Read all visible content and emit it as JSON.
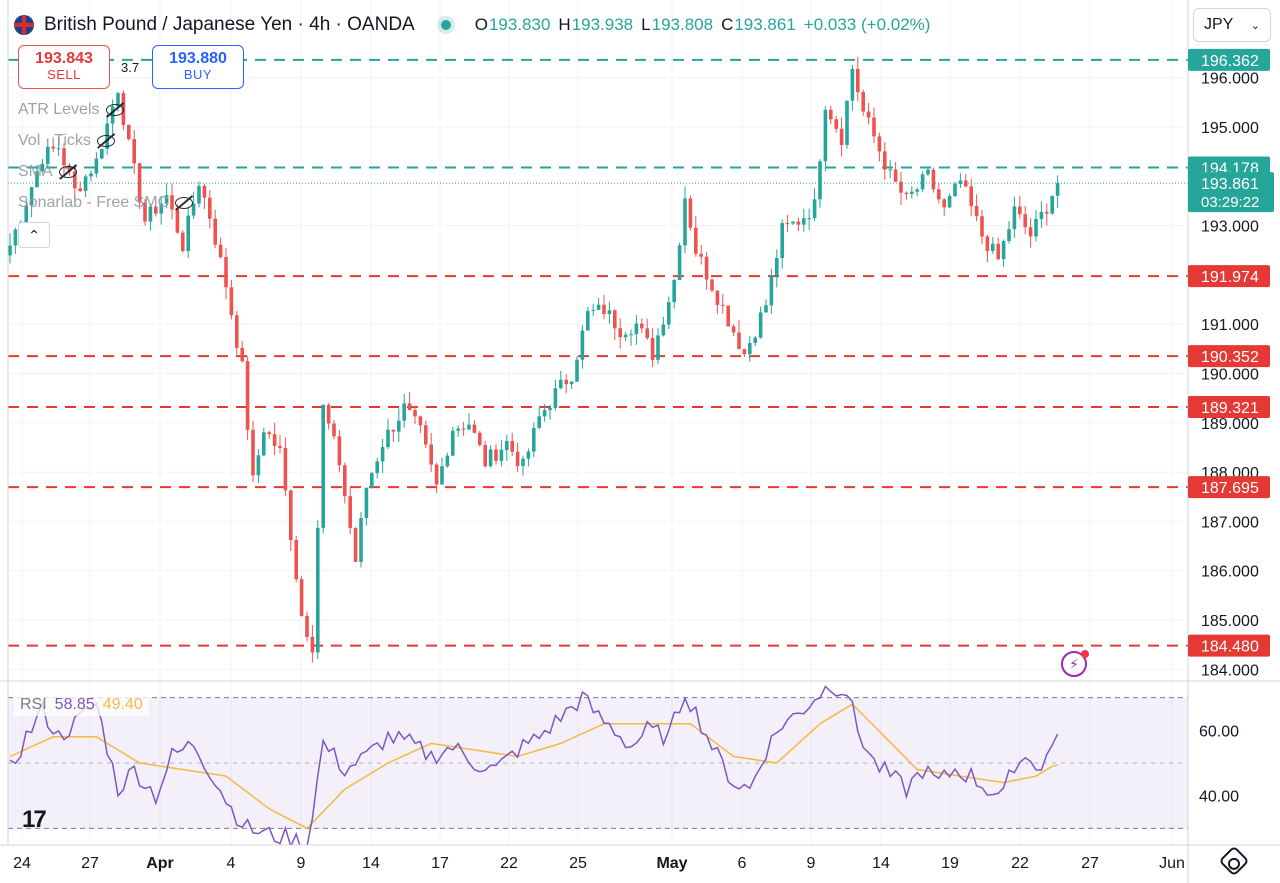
{
  "header": {
    "symbol": "British Pound / Japanese Yen · 4h · OANDA",
    "ohlc": [
      {
        "key": "O",
        "value": "193.830"
      },
      {
        "key": "H",
        "value": "193.938"
      },
      {
        "key": "L",
        "value": "193.808"
      },
      {
        "key": "C",
        "value": "193.861"
      }
    ],
    "change": "+0.033 (+0.02%)"
  },
  "currency_selector": {
    "value": "JPY"
  },
  "trade": {
    "sell_price": "193.843",
    "sell_label": "SELL",
    "buy_price": "193.880",
    "buy_label": "BUY",
    "spread": "3.7"
  },
  "indicators": [
    {
      "label": "ATR Levels"
    },
    {
      "label": "Vol · Ticks"
    },
    {
      "label": "SMA"
    },
    {
      "label": "Sonarlab - Free SMC"
    }
  ],
  "colors": {
    "up": "#26a69a",
    "down": "#ef5350",
    "resistance": "#26a69a",
    "support": "#e53935",
    "rsi_line": "#7e57c2",
    "rsi_ma": "#f5b942",
    "rsi_band": "#7e57c2"
  },
  "icons": {
    "flag": "uk-flag-icon",
    "visibility": "eye-off-icon",
    "collapse": "chevron-up-icon",
    "settings": "gear-icon",
    "alert": "lightning-icon",
    "logo": "tradingview-logo"
  },
  "chart_data": {
    "type": "candlestick",
    "title": "British Pound / Japanese Yen · 4h · OANDA",
    "y_ticks": [
      "184.000",
      "185.000",
      "186.000",
      "187.000",
      "188.000",
      "189.000",
      "190.000",
      "191.000",
      "193.000",
      "195.000",
      "196.000"
    ],
    "ylim": [
      183.8,
      196.8
    ],
    "x_ticks": [
      "24",
      "27",
      "Apr",
      "4",
      "9",
      "14",
      "17",
      "22",
      "25",
      "May",
      "6",
      "9",
      "14",
      "19",
      "22",
      "27",
      "Jun"
    ],
    "levels": [
      {
        "value": 196.362,
        "label": "196.362",
        "kind": "resistance"
      },
      {
        "value": 194.178,
        "label": "194.178",
        "kind": "resistance"
      },
      {
        "value": 191.974,
        "label": "191.974",
        "kind": "support"
      },
      {
        "value": 190.352,
        "label": "190.352",
        "kind": "support"
      },
      {
        "value": 189.321,
        "label": "189.321",
        "kind": "support"
      },
      {
        "value": 187.695,
        "label": "187.695",
        "kind": "support"
      },
      {
        "value": 184.48,
        "label": "184.480",
        "kind": "support"
      }
    ],
    "last_price": {
      "value": 193.861,
      "label": "193.861",
      "countdown": "03:29:22"
    },
    "close_anchors": [
      [
        0,
        192.6
      ],
      [
        3,
        193.5
      ],
      [
        6,
        194.4
      ],
      [
        9,
        194.6
      ],
      [
        12,
        193.7
      ],
      [
        16,
        194.3
      ],
      [
        20,
        195.8
      ],
      [
        22,
        194.6
      ],
      [
        25,
        193.1
      ],
      [
        29,
        193.6
      ],
      [
        32,
        192.6
      ],
      [
        35,
        193.9
      ],
      [
        37,
        193.2
      ],
      [
        40,
        191.8
      ],
      [
        43,
        190.1
      ],
      [
        45,
        187.8
      ],
      [
        47,
        188.9
      ],
      [
        50,
        188.4
      ],
      [
        54,
        185.1
      ],
      [
        56,
        184.5
      ],
      [
        58,
        189.3
      ],
      [
        61,
        188.2
      ],
      [
        64,
        186.2
      ],
      [
        66,
        187.7
      ],
      [
        69,
        188.6
      ],
      [
        73,
        189.3
      ],
      [
        76,
        188.8
      ],
      [
        79,
        187.7
      ],
      [
        82,
        188.9
      ],
      [
        85,
        189.0
      ],
      [
        88,
        188.2
      ],
      [
        92,
        188.6
      ],
      [
        95,
        188.1
      ],
      [
        98,
        189.1
      ],
      [
        101,
        189.6
      ],
      [
        104,
        190.0
      ],
      [
        107,
        191.2
      ],
      [
        110,
        191.3
      ],
      [
        113,
        190.9
      ],
      [
        116,
        191.0
      ],
      [
        119,
        190.4
      ],
      [
        123,
        191.9
      ],
      [
        125,
        193.6
      ],
      [
        127,
        192.5
      ],
      [
        130,
        191.8
      ],
      [
        133,
        191.1
      ],
      [
        136,
        190.4
      ],
      [
        140,
        191.4
      ],
      [
        143,
        192.9
      ],
      [
        146,
        193.1
      ],
      [
        149,
        193.4
      ],
      [
        151,
        195.5
      ],
      [
        154,
        194.8
      ],
      [
        156,
        196.2
      ],
      [
        158,
        195.3
      ],
      [
        160,
        194.8
      ],
      [
        163,
        194.0
      ],
      [
        166,
        193.5
      ],
      [
        170,
        194.0
      ],
      [
        173,
        193.3
      ],
      [
        176,
        193.9
      ],
      [
        180,
        192.8
      ],
      [
        183,
        192.3
      ],
      [
        186,
        193.3
      ],
      [
        189,
        192.8
      ],
      [
        192,
        193.4
      ],
      [
        194,
        193.9
      ]
    ],
    "rsi": {
      "name": "RSI",
      "value": 58.85,
      "ma_value": 49.4,
      "ticks": [
        "60.00",
        "40.00"
      ],
      "ylim": [
        25,
        75
      ],
      "bands": [
        70,
        30
      ],
      "anchors": [
        [
          0,
          48
        ],
        [
          3,
          58
        ],
        [
          6,
          66
        ],
        [
          9,
          58
        ],
        [
          12,
          62
        ],
        [
          16,
          68
        ],
        [
          20,
          42
        ],
        [
          23,
          48
        ],
        [
          27,
          40
        ],
        [
          30,
          52
        ],
        [
          34,
          56
        ],
        [
          38,
          45
        ],
        [
          41,
          36
        ],
        [
          44,
          30
        ],
        [
          48,
          28
        ],
        [
          52,
          27
        ],
        [
          55,
          25
        ],
        [
          58,
          56
        ],
        [
          62,
          48
        ],
        [
          66,
          52
        ],
        [
          70,
          58
        ],
        [
          74,
          56
        ],
        [
          78,
          52
        ],
        [
          82,
          55
        ],
        [
          86,
          50
        ],
        [
          90,
          48
        ],
        [
          94,
          54
        ],
        [
          98,
          58
        ],
        [
          102,
          64
        ],
        [
          106,
          70
        ],
        [
          109,
          64
        ],
        [
          112,
          60
        ],
        [
          115,
          55
        ],
        [
          118,
          60
        ],
        [
          122,
          58
        ],
        [
          125,
          72
        ],
        [
          128,
          62
        ],
        [
          131,
          52
        ],
        [
          134,
          44
        ],
        [
          137,
          42
        ],
        [
          140,
          54
        ],
        [
          143,
          62
        ],
        [
          146,
          65
        ],
        [
          149,
          70
        ],
        [
          152,
          74
        ],
        [
          155,
          72
        ],
        [
          157,
          60
        ],
        [
          160,
          50
        ],
        [
          163,
          46
        ],
        [
          166,
          42
        ],
        [
          169,
          48
        ],
        [
          172,
          44
        ],
        [
          175,
          48
        ],
        [
          178,
          46
        ],
        [
          181,
          42
        ],
        [
          184,
          40
        ],
        [
          186,
          50
        ],
        [
          189,
          52
        ],
        [
          191,
          48
        ],
        [
          194,
          59
        ]
      ],
      "ma_anchors": [
        [
          0,
          52
        ],
        [
          8,
          58
        ],
        [
          16,
          58
        ],
        [
          24,
          50
        ],
        [
          32,
          48
        ],
        [
          40,
          46
        ],
        [
          48,
          36
        ],
        [
          55,
          30
        ],
        [
          62,
          42
        ],
        [
          70,
          50
        ],
        [
          78,
          56
        ],
        [
          86,
          54
        ],
        [
          94,
          52
        ],
        [
          102,
          56
        ],
        [
          110,
          62
        ],
        [
          118,
          62
        ],
        [
          126,
          62
        ],
        [
          134,
          52
        ],
        [
          142,
          50
        ],
        [
          150,
          62
        ],
        [
          156,
          68
        ],
        [
          162,
          58
        ],
        [
          168,
          48
        ],
        [
          176,
          46
        ],
        [
          184,
          44
        ],
        [
          190,
          46
        ],
        [
          194,
          50
        ]
      ]
    }
  }
}
